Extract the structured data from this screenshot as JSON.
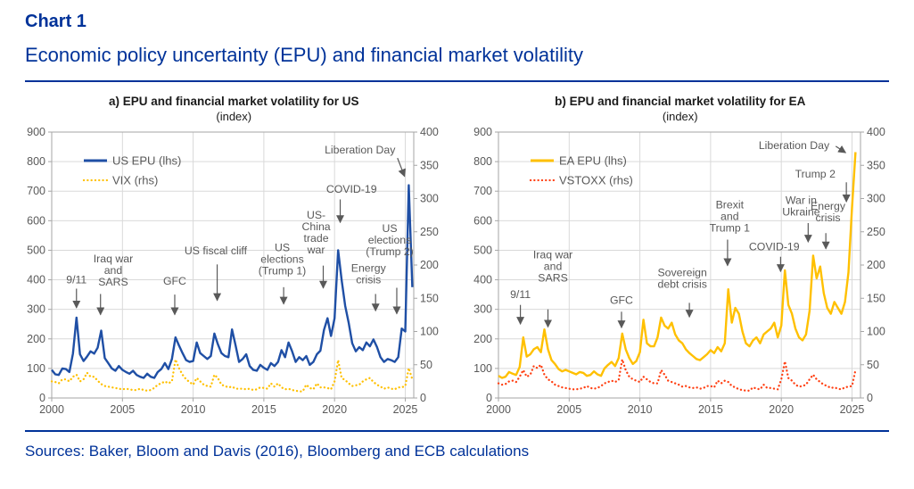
{
  "header": {
    "kicker": "Chart 1",
    "title": "Economic policy uncertainty (EPU) and financial market volatility"
  },
  "footer": {
    "sources": "Sources: Baker, Bloom and Davis (2016), Bloomberg and ECB calculations"
  },
  "colors": {
    "brand_blue": "#003299",
    "grid": "#d9d9d9",
    "axis": "#a6a6a6",
    "tick_label": "#595959",
    "annotation": "#595959"
  },
  "chart_data": [
    {
      "id": "us",
      "type": "line",
      "panel_title": "a) EPU and financial market volatility for US",
      "panel_subtitle": "(index)",
      "axes": {
        "x": {
          "min": 2000,
          "max": 2025.6,
          "ticks": [
            2000,
            2005,
            2010,
            2015,
            2020,
            2025
          ]
        },
        "left": {
          "min": 0,
          "max": 900,
          "step": 100
        },
        "right": {
          "min": 0,
          "max": 400,
          "step": 50
        }
      },
      "legend": [
        {
          "label": "US EPU (lhs)",
          "style": "solid",
          "color": "#1f4fa5"
        },
        {
          "label": "VIX (rhs)",
          "style": "dotted",
          "color": "#ffc000"
        }
      ],
      "series": [
        {
          "name": "US EPU",
          "axis": "left",
          "style": "solid",
          "color": "#1f4fa5",
          "x_start": 2000,
          "x_step": 0.25,
          "values": [
            95,
            80,
            78,
            100,
            98,
            88,
            150,
            272,
            148,
            125,
            140,
            158,
            150,
            170,
            228,
            135,
            118,
            100,
            92,
            108,
            95,
            88,
            82,
            92,
            78,
            72,
            68,
            82,
            72,
            68,
            88,
            98,
            118,
            98,
            132,
            205,
            178,
            152,
            128,
            122,
            125,
            188,
            152,
            142,
            132,
            142,
            218,
            182,
            152,
            142,
            138,
            232,
            178,
            122,
            132,
            148,
            108,
            95,
            92,
            112,
            102,
            95,
            118,
            108,
            122,
            162,
            138,
            188,
            158,
            122,
            138,
            128,
            142,
            112,
            122,
            148,
            160,
            230,
            270,
            210,
            270,
            500,
            400,
            312,
            255,
            185,
            158,
            172,
            162,
            188,
            175,
            198,
            172,
            138,
            122,
            132,
            128,
            122,
            138,
            235,
            225,
            720,
            375
          ]
        },
        {
          "name": "VIX",
          "axis": "right",
          "style": "dotted",
          "color": "#ffc000",
          "x_start": 2000,
          "x_step": 0.25,
          "values": [
            25,
            24,
            22,
            28,
            28,
            25,
            32,
            35,
            25,
            28,
            38,
            32,
            32,
            26,
            21,
            18,
            17,
            16,
            15,
            14,
            13,
            14,
            13,
            12,
            12,
            14,
            12,
            11,
            12,
            15,
            20,
            22,
            25,
            22,
            25,
            58,
            45,
            35,
            28,
            24,
            20,
            30,
            25,
            20,
            18,
            17,
            35,
            30,
            20,
            18,
            16,
            17,
            14,
            14,
            14,
            13,
            14,
            12,
            13,
            16,
            15,
            14,
            22,
            17,
            22,
            16,
            13,
            14,
            12,
            11,
            10,
            10,
            20,
            15,
            13,
            22,
            16,
            16,
            15,
            13,
            25,
            57,
            30,
            27,
            22,
            18,
            19,
            20,
            25,
            28,
            30,
            24,
            20,
            17,
            14,
            16,
            14,
            13,
            16,
            16,
            18,
            45,
            28
          ]
        }
      ],
      "annotations": [
        {
          "lines": [
            "9/11"
          ],
          "x": 2001.75,
          "y": 400,
          "arrow": [
            2001.75,
            370,
            2001.75,
            305
          ]
        },
        {
          "lines": [
            "Iraq war",
            "and",
            "SARS"
          ],
          "x": 2004.35,
          "y": 432,
          "arrow": [
            2003.45,
            352,
            2003.45,
            282
          ]
        },
        {
          "lines": [
            "GFC"
          ],
          "x": 2008.7,
          "y": 395,
          "arrow": [
            2008.7,
            350,
            2008.7,
            282
          ]
        },
        {
          "lines": [
            "US fiscal cliff"
          ],
          "x": 2011.6,
          "y": 498,
          "arrow": [
            2011.7,
            452,
            2011.7,
            330
          ]
        },
        {
          "lines": [
            "US",
            "elections",
            "(Trump 1)"
          ],
          "x": 2016.3,
          "y": 470,
          "arrow": [
            2016.4,
            375,
            2016.4,
            318
          ]
        },
        {
          "lines": [
            "US-",
            "China",
            "trade",
            "war"
          ],
          "x": 2018.7,
          "y": 560,
          "arrow": [
            2019.2,
            448,
            2019.2,
            372
          ]
        },
        {
          "lines": [
            "COVID-19"
          ],
          "x": 2021.2,
          "y": 706,
          "arrow": [
            2020.4,
            672,
            2020.4,
            594
          ]
        },
        {
          "lines": [
            "US",
            "elections",
            "(Trump 2)"
          ],
          "x": 2023.9,
          "y": 535,
          "arrow": [
            2024.4,
            373,
            2024.4,
            285
          ]
        },
        {
          "lines": [
            "Energy",
            "crisis"
          ],
          "x": 2022.4,
          "y": 420,
          "arrow": [
            2022.9,
            352,
            2022.9,
            295
          ]
        },
        {
          "lines": [
            "Liberation Day"
          ],
          "x": 2021.8,
          "y": 840,
          "arrow": [
            2024.45,
            812,
            2024.95,
            750
          ]
        }
      ]
    },
    {
      "id": "ea",
      "type": "line",
      "panel_title": "b) EPU and financial market volatility for EA",
      "panel_subtitle": "(index)",
      "axes": {
        "x": {
          "min": 2000,
          "max": 2025.6,
          "ticks": [
            2000,
            2005,
            2010,
            2015,
            2020,
            2025
          ]
        },
        "left": {
          "min": 0,
          "max": 900,
          "step": 100
        },
        "right": {
          "min": 0,
          "max": 400,
          "step": 50
        }
      },
      "legend": [
        {
          "label": "EA EPU (lhs)",
          "style": "solid",
          "color": "#ffc000"
        },
        {
          "label": "VSTOXX (rhs)",
          "style": "dotted",
          "color": "#ff4013"
        }
      ],
      "series": [
        {
          "name": "EA EPU",
          "axis": "left",
          "style": "solid",
          "color": "#ffc000",
          "x_start": 2000,
          "x_step": 0.25,
          "values": [
            75,
            68,
            72,
            88,
            82,
            78,
            105,
            205,
            140,
            148,
            165,
            172,
            155,
            232,
            165,
            128,
            115,
            98,
            90,
            95,
            90,
            85,
            80,
            88,
            85,
            75,
            78,
            90,
            80,
            75,
            100,
            112,
            122,
            108,
            135,
            218,
            165,
            135,
            115,
            125,
            155,
            265,
            185,
            175,
            175,
            205,
            272,
            245,
            235,
            255,
            215,
            195,
            185,
            165,
            152,
            142,
            132,
            128,
            138,
            148,
            162,
            152,
            172,
            158,
            185,
            368,
            255,
            305,
            285,
            225,
            185,
            175,
            195,
            205,
            185,
            215,
            225,
            235,
            255,
            205,
            245,
            432,
            315,
            285,
            235,
            205,
            195,
            215,
            295,
            482,
            405,
            445,
            355,
            305,
            285,
            325,
            305,
            285,
            325,
            425,
            645,
            832
          ]
        },
        {
          "name": "VSTOXX",
          "axis": "right",
          "style": "dotted",
          "color": "#ff4013",
          "x_start": 2000,
          "x_step": 0.25,
          "values": [
            22,
            20,
            21,
            25,
            26,
            24,
            32,
            42,
            32,
            35,
            48,
            45,
            50,
            35,
            28,
            25,
            20,
            18,
            16,
            15,
            14,
            13,
            13,
            14,
            15,
            18,
            15,
            14,
            15,
            18,
            22,
            24,
            26,
            24,
            27,
            58,
            42,
            32,
            28,
            26,
            24,
            32,
            28,
            24,
            22,
            22,
            42,
            35,
            26,
            24,
            22,
            20,
            17,
            18,
            16,
            15,
            16,
            14,
            15,
            18,
            18,
            16,
            26,
            22,
            26,
            24,
            18,
            16,
            13,
            12,
            11,
            11,
            16,
            14,
            13,
            20,
            15,
            15,
            14,
            13,
            28,
            55,
            30,
            26,
            20,
            17,
            18,
            20,
            28,
            35,
            28,
            24,
            20,
            18,
            15,
            16,
            14,
            13,
            16,
            17,
            18,
            42
          ]
        }
      ],
      "annotations": [
        {
          "lines": [
            "9/11"
          ],
          "x": 2001.55,
          "y": 350,
          "arrow": [
            2001.55,
            315,
            2001.55,
            250
          ]
        },
        {
          "lines": [
            "Iraq war",
            "and",
            "SARS"
          ],
          "x": 2003.85,
          "y": 445,
          "arrow": [
            2003.5,
            300,
            2003.5,
            240
          ]
        },
        {
          "lines": [
            "GFC"
          ],
          "x": 2008.7,
          "y": 330,
          "arrow": [
            2008.7,
            292,
            2008.7,
            238
          ]
        },
        {
          "lines": [
            "Sovereign",
            "debt crisis"
          ],
          "x": 2013.0,
          "y": 405,
          "arrow": [
            2013.5,
            322,
            2013.5,
            274
          ]
        },
        {
          "lines": [
            "Brexit",
            "and",
            "Trump 1"
          ],
          "x": 2016.35,
          "y": 615,
          "arrow": [
            2016.2,
            536,
            2016.2,
            448
          ]
        },
        {
          "lines": [
            "COVID-19"
          ],
          "x": 2019.5,
          "y": 512,
          "arrow": [
            2019.95,
            478,
            2019.95,
            428
          ]
        },
        {
          "lines": [
            "War in",
            "Ukraine"
          ],
          "x": 2021.4,
          "y": 650,
          "arrow": [
            2021.9,
            592,
            2021.9,
            528
          ]
        },
        {
          "lines": [
            "Energy",
            "crisis"
          ],
          "x": 2023.3,
          "y": 630,
          "arrow": [
            2023.15,
            558,
            2023.15,
            505
          ]
        },
        {
          "lines": [
            "Trump 2"
          ],
          "x": 2022.4,
          "y": 758,
          "arrow": [
            2024.6,
            730,
            2024.6,
            664
          ]
        },
        {
          "lines": [
            "Liberation Day"
          ],
          "x": 2020.9,
          "y": 855,
          "arrow": [
            2023.85,
            852,
            2024.55,
            830
          ]
        }
      ]
    }
  ]
}
